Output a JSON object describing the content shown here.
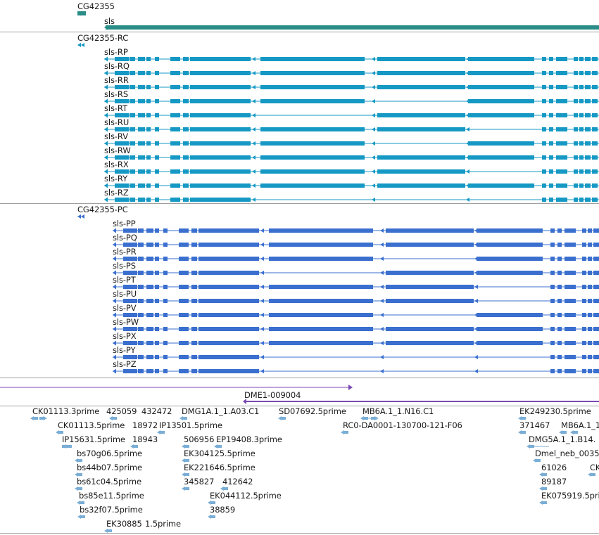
{
  "colors": {
    "gene": "#2a8c86",
    "transcript_r": "#1599c4",
    "transcript_p": "#3a6fcf",
    "match": "#7a4ab5",
    "est": "#7aaed6",
    "divider": "#a0a0a0",
    "text": "#1a1a1a"
  },
  "gene_track": {
    "small_label": "CG42355",
    "gene_label": "sls"
  },
  "rna_track": {
    "cg_label": "CG42355-RC",
    "transcripts": [
      {
        "label": "sls-RP",
        "pattern": "full"
      },
      {
        "label": "sls-RQ",
        "pattern": "full"
      },
      {
        "label": "sls-RR",
        "pattern": "full"
      },
      {
        "label": "sls-RS",
        "pattern": "skipA"
      },
      {
        "label": "sls-RT",
        "pattern": "skipC"
      },
      {
        "label": "sls-RU",
        "pattern": "skipB"
      },
      {
        "label": "sls-RV",
        "pattern": "skipD"
      },
      {
        "label": "sls-RW",
        "pattern": "full"
      },
      {
        "label": "sls-RX",
        "pattern": "skipE"
      },
      {
        "label": "sls-RY",
        "pattern": "full"
      },
      {
        "label": "sls-RZ",
        "pattern": "short"
      }
    ]
  },
  "protein_track": {
    "cg_label": "CG42355-PC",
    "transcripts": [
      {
        "label": "sls-PP",
        "pattern": "full"
      },
      {
        "label": "sls-PQ",
        "pattern": "full"
      },
      {
        "label": "sls-PR",
        "pattern": "skipA"
      },
      {
        "label": "sls-PS",
        "pattern": "skipC"
      },
      {
        "label": "sls-PT",
        "pattern": "skipE"
      },
      {
        "label": "sls-PU",
        "pattern": "skipB"
      },
      {
        "label": "sls-PV",
        "pattern": "skipD"
      },
      {
        "label": "sls-PW",
        "pattern": "full"
      },
      {
        "label": "sls-PX",
        "pattern": "full"
      },
      {
        "label": "sls-PY",
        "pattern": "short"
      },
      {
        "label": "sls-PZ",
        "pattern": "short"
      }
    ]
  },
  "match_track": {
    "label": "DME1-009004"
  },
  "est_track": {
    "labels": [
      "CK01113.3prime",
      "425059",
      "432472",
      "DMG1A.1_1.A03.C1",
      "SD07692.5prime",
      "MB6A.1_1.N16.C1",
      "EK249230.5prime",
      "CK01113.5prime",
      "18972",
      "IP13501.5prime",
      "RC0-DA0001-130700-121-F06",
      "371467",
      "MB6A.1_1.B14.",
      "IP15631.5prime",
      "18943",
      "506956",
      "EP19408.3prime",
      "DMG5A.1_1.B14.",
      "bs70g06.5prime",
      "EK304125.5prime",
      "Dmel_neb_0035",
      "bs44b07.5prime",
      "EK221646.5prime",
      "61026",
      "CK",
      "bs61c04.5prime",
      "345827",
      "412642",
      "89187",
      "bs85e11.5prime",
      "EK044112.5prime",
      "EK075919.5pri",
      "bs32f07.5prime",
      "38859",
      "EK30885",
      "1.5prime"
    ]
  }
}
